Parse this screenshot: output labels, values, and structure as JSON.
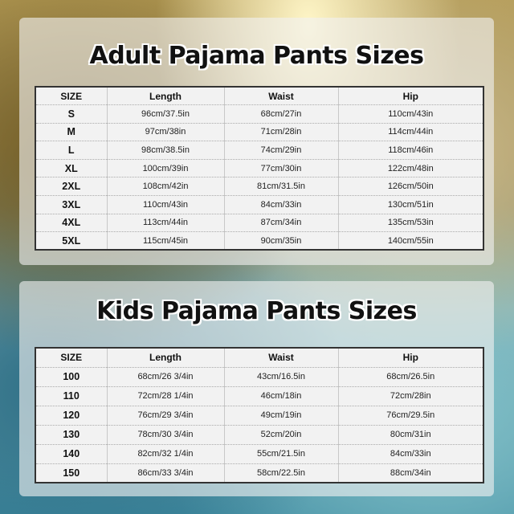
{
  "adult": {
    "title": "Adult Pajama Pants Sizes",
    "headers": [
      "SIZE",
      "Length",
      "Waist",
      "Hip"
    ],
    "rows": [
      [
        "S",
        "96cm/37.5in",
        "68cm/27in",
        "110cm/43in"
      ],
      [
        "M",
        "97cm/38in",
        "71cm/28in",
        "114cm/44in"
      ],
      [
        "L",
        "98cm/38.5in",
        "74cm/29in",
        "118cm/46in"
      ],
      [
        "XL",
        "100cm/39in",
        "77cm/30in",
        "122cm/48in"
      ],
      [
        "2XL",
        "108cm/42in",
        "81cm/31.5in",
        "126cm/50in"
      ],
      [
        "3XL",
        "110cm/43in",
        "84cm/33in",
        "130cm/51in"
      ],
      [
        "4XL",
        "113cm/44in",
        "87cm/34in",
        "135cm/53in"
      ],
      [
        "5XL",
        "115cm/45in",
        "90cm/35in",
        "140cm/55in"
      ]
    ]
  },
  "kids": {
    "title": "Kids Pajama Pants Sizes",
    "headers": [
      "SIZE",
      "Length",
      "Waist",
      "Hip"
    ],
    "rows": [
      [
        "100",
        "68cm/26 3/4in",
        "43cm/16.5in",
        "68cm/26.5in"
      ],
      [
        "110",
        "72cm/28 1/4in",
        "46cm/18in",
        "72cm/28in"
      ],
      [
        "120",
        "76cm/29 3/4in",
        "49cm/19in",
        "76cm/29.5in"
      ],
      [
        "130",
        "78cm/30 3/4in",
        "52cm/20in",
        "80cm/31in"
      ],
      [
        "140",
        "82cm/32 1/4in",
        "55cm/21.5in",
        "84cm/33in"
      ],
      [
        "150",
        "86cm/33 3/4in",
        "58cm/22.5in",
        "88cm/34in"
      ]
    ]
  }
}
